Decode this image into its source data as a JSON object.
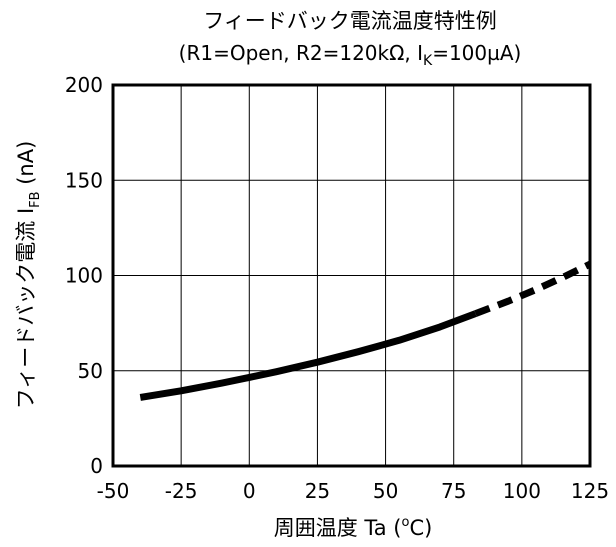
{
  "chart_data": {
    "type": "line",
    "title": "フィードバック電流温度特性例",
    "subtitle": {
      "prefix": "(R1=Open, R2=120kΩ, I",
      "sub": "K",
      "suffix": "=100µA)"
    },
    "xlabel": {
      "main": "周囲温度 Ta (",
      "sup": "o",
      "suffix": "C)"
    },
    "ylabel": {
      "main": "フィードバック電流 I",
      "sub": "FB",
      "suffix": " (nA)"
    },
    "xlim": [
      -50,
      125
    ],
    "ylim": [
      0,
      200
    ],
    "x_ticks": [
      -50,
      -25,
      0,
      25,
      50,
      75,
      100,
      125
    ],
    "y_ticks": [
      0,
      50,
      100,
      150,
      200
    ],
    "grid": true,
    "series": [
      {
        "style": "solid",
        "x": [
          -40,
          -25,
          -10,
          0,
          10,
          25,
          40,
          55,
          70,
          83
        ],
        "y": [
          36,
          39.5,
          43.5,
          46.5,
          49.5,
          54.5,
          60,
          66,
          73,
          80
        ]
      },
      {
        "style": "dashed",
        "x": [
          83,
          95,
          105,
          115,
          125
        ],
        "y": [
          80,
          86.5,
          92.5,
          99,
          106
        ]
      }
    ]
  }
}
